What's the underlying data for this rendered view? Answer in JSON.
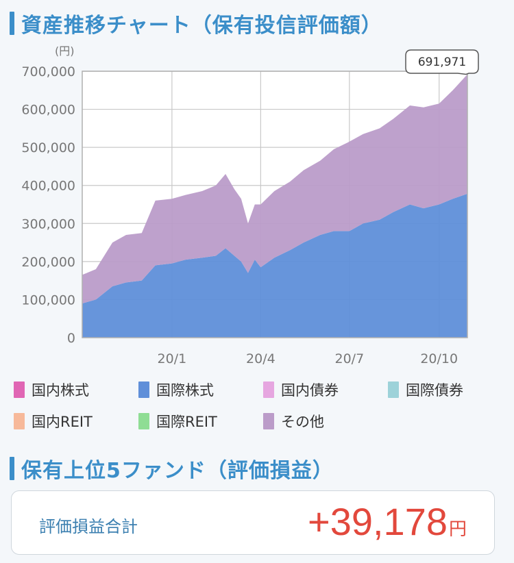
{
  "section1": {
    "title": "資産推移チャート（保有投信評価額）"
  },
  "section2": {
    "title": "保有上位5ファンド（評価損益）"
  },
  "summary": {
    "label": "評価損益合計",
    "value": "+39,178",
    "unit": "円"
  },
  "legend": [
    {
      "name": "国内株式",
      "color": "#e066b4"
    },
    {
      "name": "国際株式",
      "color": "#5f8fd9"
    },
    {
      "name": "国内債券",
      "color": "#e6a6e0"
    },
    {
      "name": "国際債券",
      "color": "#9dd2d9"
    },
    {
      "name": "国内REIT",
      "color": "#f7b99a"
    },
    {
      "name": "国際REIT",
      "color": "#8fdd94"
    },
    {
      "name": "その他",
      "color": "#bb9cc9"
    }
  ],
  "chart_data": {
    "type": "area",
    "stacked": true,
    "unit_label": "(円)",
    "x_tick_labels": [
      "20/1",
      "20/4",
      "20/7",
      "20/10"
    ],
    "y_ticks": [
      "0",
      "100,000",
      "200,000",
      "300,000",
      "400,000",
      "500,000",
      "600,000",
      "700,000"
    ],
    "ylim": [
      0,
      700000
    ],
    "grid": true,
    "callout": "691,971",
    "x": [
      "19/10/01",
      "19/10/15",
      "19/11/01",
      "19/11/15",
      "19/12/01",
      "19/12/15",
      "20/01/01",
      "20/01/15",
      "20/02/01",
      "20/02/15",
      "20/02/25",
      "20/03/05",
      "20/03/12",
      "20/03/19",
      "20/03/26",
      "20/04/01",
      "20/04/15",
      "20/05/01",
      "20/05/15",
      "20/06/01",
      "20/06/15",
      "20/07/01",
      "20/07/15",
      "20/08/01",
      "20/08/15",
      "20/09/01",
      "20/09/15",
      "20/10/01",
      "20/10/15",
      "20/10/30"
    ],
    "series": [
      {
        "name": "国際株式",
        "color": "#5f8fd9",
        "values": [
          90000,
          100000,
          135000,
          145000,
          150000,
          190000,
          195000,
          205000,
          210000,
          215000,
          235000,
          215000,
          200000,
          170000,
          205000,
          185000,
          210000,
          230000,
          250000,
          270000,
          280000,
          280000,
          300000,
          310000,
          330000,
          350000,
          340000,
          350000,
          365000,
          378000
        ]
      },
      {
        "name": "その他",
        "color": "#bb9cc9",
        "values": [
          75000,
          80000,
          115000,
          125000,
          125000,
          170000,
          170000,
          170000,
          175000,
          185000,
          195000,
          175000,
          165000,
          130000,
          145000,
          165000,
          175000,
          180000,
          190000,
          195000,
          215000,
          235000,
          235000,
          240000,
          245000,
          260000,
          265000,
          265000,
          285000,
          313971
        ]
      }
    ]
  }
}
